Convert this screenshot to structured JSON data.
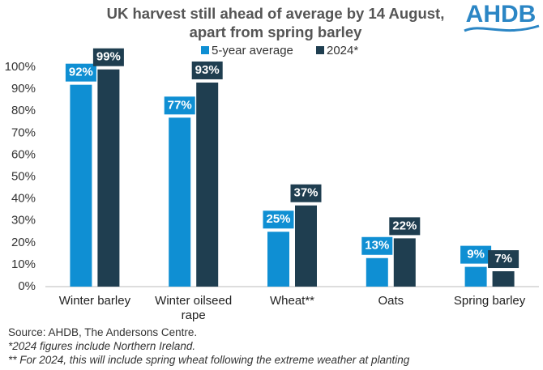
{
  "chart_data": {
    "type": "bar",
    "title": "UK harvest still ahead of average by 14 August, apart from spring barley",
    "logo": "AHDB",
    "categories": [
      "Winter barley",
      "Winter oilseed rape",
      "Wheat**",
      "Oats",
      "Spring barley"
    ],
    "series": [
      {
        "name": "5-year average",
        "color": "#0f8fd3",
        "values": [
          92,
          77,
          25,
          13,
          9
        ],
        "value_labels": [
          "92%",
          "77%",
          "25%",
          "13%",
          "9%"
        ]
      },
      {
        "name": "2024*",
        "color": "#1f3e50",
        "values": [
          99,
          93,
          37,
          22,
          7
        ],
        "value_labels": [
          "99%",
          "93%",
          "37%",
          "22%",
          "7%"
        ]
      }
    ],
    "ylim": [
      0,
      100
    ],
    "yticks": [
      {
        "value": 0,
        "label": "0%"
      },
      {
        "value": 10,
        "label": "10%"
      },
      {
        "value": 20,
        "label": "20%"
      },
      {
        "value": 30,
        "label": "30%"
      },
      {
        "value": 40,
        "label": "40%"
      },
      {
        "value": 50,
        "label": "50%"
      },
      {
        "value": 60,
        "label": "60%"
      },
      {
        "value": 70,
        "label": "70%"
      },
      {
        "value": 80,
        "label": "80%"
      },
      {
        "value": 90,
        "label": "90%"
      },
      {
        "value": 100,
        "label": "100%"
      }
    ],
    "grid": false,
    "notes": [
      "Source: AHDB, The Andersons Centre.",
      "*2024 figures include Northern Ireland.",
      "** For 2024, this will include spring wheat following the extreme weather at planting"
    ]
  }
}
